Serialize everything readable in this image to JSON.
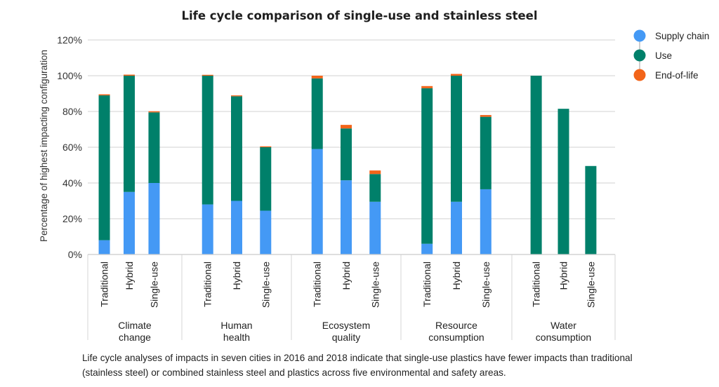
{
  "chart_data": {
    "type": "bar",
    "stacked": true,
    "title": "Life cycle comparison of single-use and stainless steel",
    "ylabel": "Percentage of highest impacting configuration",
    "xlabel": "",
    "ylim": [
      0,
      120
    ],
    "yticks": [
      0,
      20,
      40,
      60,
      80,
      100,
      120
    ],
    "ytick_labels": [
      "0%",
      "20%",
      "40%",
      "60%",
      "80%",
      "100%",
      "120%"
    ],
    "grid": true,
    "legend_position": "top-right",
    "groups": [
      {
        "label_lines": [
          "Climate",
          "change"
        ],
        "label": "Climate change"
      },
      {
        "label_lines": [
          "Human",
          "health"
        ],
        "label": "Human health"
      },
      {
        "label_lines": [
          "Ecosystem",
          "quality"
        ],
        "label": "Ecosystem quality"
      },
      {
        "label_lines": [
          "Resource",
          "consumption"
        ],
        "label": "Resource consumption"
      },
      {
        "label_lines": [
          "Water",
          "consumption"
        ],
        "label": "Water consumption"
      }
    ],
    "categories": [
      "Traditional",
      "Hybrid",
      "Single-use"
    ],
    "series": [
      {
        "name": "Supply chain",
        "color": "#4499f5",
        "values": [
          [
            8,
            35,
            40
          ],
          [
            28,
            30,
            24.5
          ],
          [
            59,
            41.5,
            29.5
          ],
          [
            6,
            29.5,
            36.5
          ],
          [
            0,
            0,
            0
          ]
        ]
      },
      {
        "name": "Use",
        "color": "#00806a",
        "values": [
          [
            81,
            65,
            39.5
          ],
          [
            72,
            58.5,
            35.5
          ],
          [
            39.5,
            29,
            15.5
          ],
          [
            87,
            70.5,
            40.5
          ],
          [
            100,
            81.5,
            49.5
          ]
        ]
      },
      {
        "name": "End-of-life",
        "color": "#f26419",
        "values": [
          [
            0.6,
            0.6,
            0.6
          ],
          [
            0.5,
            0.5,
            0.5
          ],
          [
            1.5,
            2,
            2
          ],
          [
            1.2,
            1,
            1
          ],
          [
            0,
            0,
            0
          ]
        ]
      }
    ]
  },
  "caption": "Life cycle analyses of impacts in seven cities in 2016 and 2018 indicate that single-use plastics have fewer impacts than traditional (stainless steel) or combined stainless steel and plastics across five environmental and safety areas."
}
